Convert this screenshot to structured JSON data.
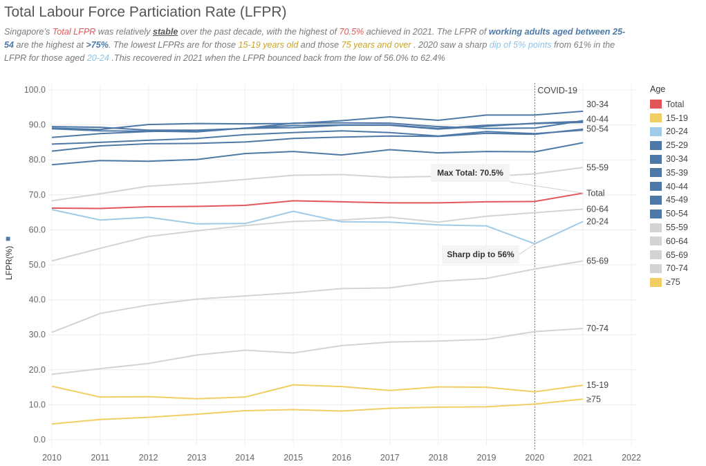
{
  "title": "Total Labour Force Particiation Rate (LFPR)",
  "subtitle": {
    "p1": "Singapore’s ",
    "p2": "Total LFPR",
    "p3": " was relatively ",
    "p4": "stable",
    "p5": " over the past decade, with the highest of ",
    "p6": "70.5%",
    "p7": " achieved in 2021. The LFPR of ",
    "p8": "working adults aged between 25-54",
    "p9": " are the highest at ",
    "p10": ">75%",
    "p11": ". The lowest LFPRs are for those ",
    "p12": "15-19 years old",
    "p13": " and those ",
    "p14": "75 years and over",
    "p15": " . 2020 saw a sharp ",
    "p16": "dip of 5% points",
    "p17": " from 61% in the LFPR for those aged ",
    "p18": "20-24",
    "p19": " .This recovered in 2021 when the LFPR bounced back from the low of 56.0% to 62.4%"
  },
  "y_axis_label": "LFPR(%)",
  "legend": {
    "title": "Age",
    "items": [
      {
        "label": "Total",
        "color": "#e15759"
      },
      {
        "label": "15-19",
        "color": "#f1ce63"
      },
      {
        "label": "20-24",
        "color": "#a0cbe8"
      },
      {
        "label": "25-29",
        "color": "#4e79a7"
      },
      {
        "label": "30-34",
        "color": "#4e79a7"
      },
      {
        "label": "35-39",
        "color": "#4e79a7"
      },
      {
        "label": "40-44",
        "color": "#4e79a7"
      },
      {
        "label": "45-49",
        "color": "#4e79a7"
      },
      {
        "label": "50-54",
        "color": "#4e79a7"
      },
      {
        "label": "55-59",
        "color": "#d3d3d3"
      },
      {
        "label": "60-64",
        "color": "#d3d3d3"
      },
      {
        "label": "65-69",
        "color": "#d3d3d3"
      },
      {
        "label": "70-74",
        "color": "#d3d3d3"
      },
      {
        "label": "≥75",
        "color": "#f1ce63"
      }
    ]
  },
  "chart_data": {
    "type": "line",
    "x": [
      2010,
      2011,
      2012,
      2013,
      2014,
      2015,
      2016,
      2017,
      2018,
      2019,
      2020,
      2021
    ],
    "x_ticks": [
      "2010",
      "2011",
      "2012",
      "2013",
      "2014",
      "2015",
      "2016",
      "2017",
      "2018",
      "2019",
      "2020",
      "2021",
      "2022"
    ],
    "xlim": [
      2010,
      2022
    ],
    "ylim": [
      0,
      100
    ],
    "y_ticks": [
      "0.0",
      "10.0",
      "20.0",
      "30.0",
      "40.0",
      "50.0",
      "60.0",
      "70.0",
      "80.0",
      "90.0",
      "100.0"
    ],
    "ylabel": "LFPR(%)",
    "grid": true,
    "series": [
      {
        "name": "Total",
        "color": "#e15759",
        "width": 2,
        "end_label": "Total",
        "values": [
          66.2,
          66.1,
          66.6,
          66.7,
          67.0,
          68.3,
          68.0,
          67.7,
          67.7,
          68.0,
          68.1,
          70.5
        ]
      },
      {
        "name": "15-19",
        "color": "#f1ce63",
        "width": 2,
        "end_label": "15-19",
        "values": [
          15.3,
          12.2,
          12.3,
          11.7,
          12.2,
          15.7,
          15.2,
          14.1,
          15.1,
          15.0,
          13.7,
          15.6
        ]
      },
      {
        "name": "20-24",
        "color": "#a0cbe8",
        "width": 2,
        "end_label": "20-24",
        "values": [
          65.8,
          62.8,
          63.6,
          61.7,
          61.8,
          65.3,
          62.3,
          62.2,
          61.4,
          61.1,
          56.0,
          62.4
        ]
      },
      {
        "name": "25-29",
        "color": "#4e79a7",
        "width": 2,
        "end_label": "",
        "values": [
          89.5,
          89.3,
          88.5,
          88.5,
          89.0,
          90.5,
          90.6,
          90.5,
          89.5,
          89.0,
          89.1,
          91.2
        ]
      },
      {
        "name": "30-34",
        "color": "#4e79a7",
        "width": 2,
        "end_label": "30-34",
        "values": [
          89.1,
          88.7,
          90.1,
          90.4,
          90.3,
          90.4,
          91.2,
          92.3,
          91.3,
          92.8,
          92.8,
          93.9
        ]
      },
      {
        "name": "35-39",
        "color": "#4e79a7",
        "width": 2,
        "end_label": "",
        "values": [
          88.9,
          88.3,
          88.2,
          88.0,
          89.1,
          89.8,
          90.0,
          90.0,
          89.0,
          89.9,
          90.4,
          90.7
        ]
      },
      {
        "name": "40-44",
        "color": "#4e79a7",
        "width": 2,
        "end_label": "40-44",
        "values": [
          86.4,
          87.5,
          88.1,
          88.4,
          89.0,
          89.2,
          89.9,
          89.9,
          88.8,
          89.6,
          90.5,
          91.0
        ]
      },
      {
        "name": "45-49",
        "color": "#4e79a7",
        "width": 2,
        "end_label": "",
        "values": [
          84.5,
          85.0,
          85.6,
          86.1,
          87.2,
          87.8,
          88.3,
          87.8,
          86.8,
          88.1,
          87.5,
          88.5
        ]
      },
      {
        "name": "50-54",
        "color": "#4e79a7",
        "width": 2,
        "end_label": "50-54",
        "values": [
          82.5,
          84.0,
          84.6,
          84.7,
          85.1,
          86.1,
          86.5,
          86.8,
          86.7,
          87.6,
          87.3,
          88.8
        ]
      },
      {
        "name": "50-54b",
        "color": "#4e79a7",
        "width": 2,
        "end_label": "",
        "values": [
          78.6,
          79.8,
          79.6,
          80.1,
          81.8,
          82.4,
          81.4,
          82.9,
          82.0,
          82.4,
          82.3,
          84.9
        ]
      },
      {
        "name": "55-59",
        "color": "#d3d3d3",
        "width": 2,
        "end_label": "55-59",
        "values": [
          68.3,
          70.3,
          72.5,
          73.3,
          74.4,
          75.6,
          75.8,
          75.0,
          75.3,
          75.2,
          76.0,
          77.8
        ]
      },
      {
        "name": "60-64",
        "color": "#d3d3d3",
        "width": 2,
        "end_label": "60-64",
        "values": [
          51.1,
          54.7,
          58.1,
          59.7,
          61.2,
          62.4,
          62.8,
          63.6,
          62.2,
          63.9,
          64.9,
          65.9
        ]
      },
      {
        "name": "65-69",
        "color": "#d3d3d3",
        "width": 2,
        "end_label": "65-69",
        "values": [
          30.7,
          36.1,
          38.5,
          40.2,
          41.1,
          42.0,
          43.2,
          43.4,
          45.3,
          46.1,
          48.8,
          51.1
        ]
      },
      {
        "name": "70-74",
        "color": "#d3d3d3",
        "width": 2,
        "end_label": "70-74",
        "values": [
          18.7,
          20.3,
          21.8,
          24.2,
          25.6,
          24.8,
          26.9,
          27.9,
          28.2,
          28.7,
          30.9,
          31.8
        ]
      },
      {
        "name": "≥75",
        "color": "#f1ce63",
        "width": 2,
        "end_label": "≥75",
        "values": [
          4.5,
          5.8,
          6.4,
          7.3,
          8.3,
          8.6,
          8.2,
          9.0,
          9.3,
          9.4,
          10.2,
          11.6
        ]
      }
    ],
    "reference_line": {
      "x": 2020,
      "label": "COVID-19"
    },
    "annotations": [
      {
        "text": "Max Total: 70.5%",
        "x": 2021,
        "y": 70.5
      },
      {
        "text": "Sharp dip to 56%",
        "x": 2020,
        "y": 56.0
      }
    ]
  }
}
